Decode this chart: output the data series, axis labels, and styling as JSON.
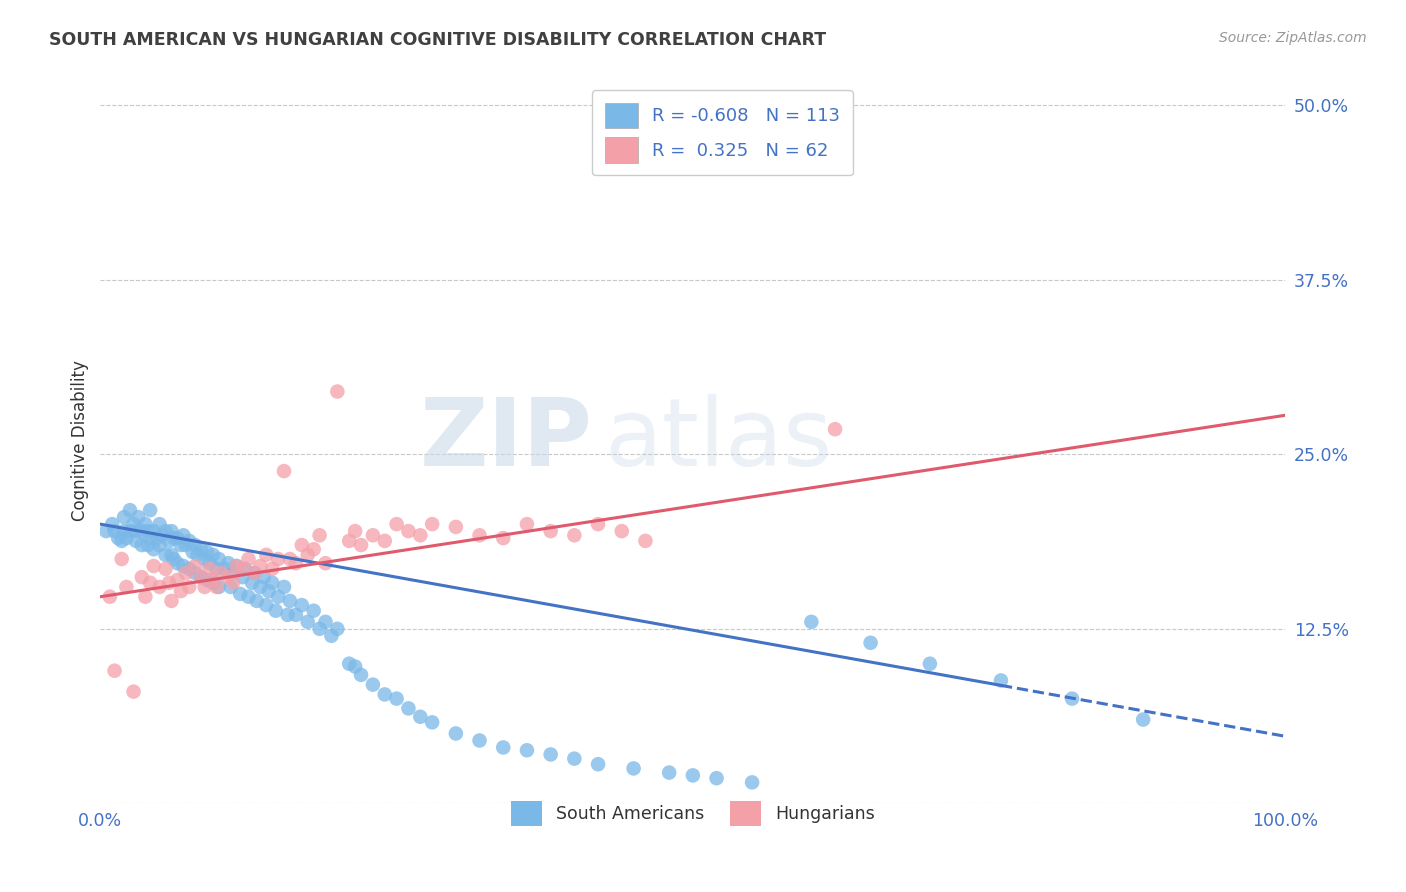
{
  "title": "SOUTH AMERICAN VS HUNGARIAN COGNITIVE DISABILITY CORRELATION CHART",
  "source": "Source: ZipAtlas.com",
  "ylabel": "Cognitive Disability",
  "yticks": [
    0.0,
    0.125,
    0.25,
    0.375,
    0.5
  ],
  "ytick_labels": [
    "",
    "12.5%",
    "25.0%",
    "37.5%",
    "50.0%"
  ],
  "xlim": [
    0.0,
    1.0
  ],
  "ylim": [
    0.0,
    0.52
  ],
  "legend_blue_r": "-0.608",
  "legend_blue_n": "113",
  "legend_pink_r": "0.325",
  "legend_pink_n": "62",
  "blue_color": "#7ab8e8",
  "pink_color": "#f4a0a8",
  "blue_line_color": "#4472c4",
  "pink_line_color": "#e05a6e",
  "watermark_zip": "ZIP",
  "watermark_atlas": "atlas",
  "blue_trend_y_start": 0.2,
  "blue_trend_y_end": 0.048,
  "blue_trend_solid_end_x": 0.76,
  "pink_trend_y_start": 0.148,
  "pink_trend_y_end": 0.278,
  "blue_scatter_x": [
    0.005,
    0.01,
    0.012,
    0.015,
    0.018,
    0.02,
    0.02,
    0.022,
    0.025,
    0.025,
    0.028,
    0.03,
    0.03,
    0.032,
    0.035,
    0.035,
    0.038,
    0.04,
    0.04,
    0.042,
    0.042,
    0.045,
    0.045,
    0.048,
    0.05,
    0.05,
    0.052,
    0.055,
    0.055,
    0.058,
    0.06,
    0.06,
    0.062,
    0.062,
    0.065,
    0.065,
    0.068,
    0.07,
    0.07,
    0.072,
    0.075,
    0.075,
    0.078,
    0.08,
    0.08,
    0.082,
    0.085,
    0.085,
    0.088,
    0.09,
    0.09,
    0.092,
    0.095,
    0.095,
    0.098,
    0.1,
    0.1,
    0.105,
    0.108,
    0.11,
    0.112,
    0.115,
    0.118,
    0.12,
    0.122,
    0.125,
    0.128,
    0.13,
    0.132,
    0.135,
    0.138,
    0.14,
    0.142,
    0.145,
    0.148,
    0.15,
    0.155,
    0.158,
    0.16,
    0.165,
    0.17,
    0.175,
    0.18,
    0.185,
    0.19,
    0.195,
    0.2,
    0.21,
    0.215,
    0.22,
    0.23,
    0.24,
    0.25,
    0.26,
    0.27,
    0.28,
    0.3,
    0.32,
    0.34,
    0.36,
    0.38,
    0.4,
    0.42,
    0.45,
    0.48,
    0.5,
    0.52,
    0.55,
    0.6,
    0.65,
    0.7,
    0.76,
    0.82,
    0.88
  ],
  "blue_scatter_y": [
    0.195,
    0.2,
    0.195,
    0.19,
    0.188,
    0.205,
    0.195,
    0.19,
    0.21,
    0.195,
    0.2,
    0.195,
    0.188,
    0.205,
    0.195,
    0.185,
    0.2,
    0.195,
    0.185,
    0.21,
    0.19,
    0.195,
    0.182,
    0.19,
    0.2,
    0.185,
    0.192,
    0.195,
    0.178,
    0.188,
    0.195,
    0.178,
    0.19,
    0.175,
    0.19,
    0.172,
    0.185,
    0.192,
    0.17,
    0.185,
    0.188,
    0.168,
    0.18,
    0.185,
    0.165,
    0.178,
    0.182,
    0.162,
    0.175,
    0.18,
    0.16,
    0.172,
    0.178,
    0.158,
    0.168,
    0.175,
    0.155,
    0.168,
    0.172,
    0.155,
    0.165,
    0.17,
    0.15,
    0.162,
    0.168,
    0.148,
    0.158,
    0.165,
    0.145,
    0.155,
    0.162,
    0.142,
    0.152,
    0.158,
    0.138,
    0.148,
    0.155,
    0.135,
    0.145,
    0.135,
    0.142,
    0.13,
    0.138,
    0.125,
    0.13,
    0.12,
    0.125,
    0.1,
    0.098,
    0.092,
    0.085,
    0.078,
    0.075,
    0.068,
    0.062,
    0.058,
    0.05,
    0.045,
    0.04,
    0.038,
    0.035,
    0.032,
    0.028,
    0.025,
    0.022,
    0.02,
    0.018,
    0.015,
    0.13,
    0.115,
    0.1,
    0.088,
    0.075,
    0.06
  ],
  "pink_scatter_x": [
    0.008,
    0.012,
    0.018,
    0.022,
    0.028,
    0.035,
    0.038,
    0.042,
    0.045,
    0.05,
    0.055,
    0.058,
    0.06,
    0.065,
    0.068,
    0.072,
    0.075,
    0.08,
    0.085,
    0.088,
    0.092,
    0.095,
    0.098,
    0.102,
    0.108,
    0.112,
    0.115,
    0.12,
    0.125,
    0.13,
    0.135,
    0.14,
    0.145,
    0.15,
    0.155,
    0.16,
    0.165,
    0.17,
    0.175,
    0.18,
    0.185,
    0.19,
    0.2,
    0.21,
    0.215,
    0.22,
    0.23,
    0.24,
    0.25,
    0.26,
    0.27,
    0.28,
    0.3,
    0.32,
    0.34,
    0.36,
    0.38,
    0.4,
    0.42,
    0.44,
    0.46,
    0.62
  ],
  "pink_scatter_y": [
    0.148,
    0.095,
    0.175,
    0.155,
    0.08,
    0.162,
    0.148,
    0.158,
    0.17,
    0.155,
    0.168,
    0.158,
    0.145,
    0.16,
    0.152,
    0.165,
    0.155,
    0.17,
    0.162,
    0.155,
    0.168,
    0.16,
    0.155,
    0.165,
    0.162,
    0.158,
    0.17,
    0.168,
    0.175,
    0.165,
    0.17,
    0.178,
    0.168,
    0.175,
    0.238,
    0.175,
    0.172,
    0.185,
    0.178,
    0.182,
    0.192,
    0.172,
    0.295,
    0.188,
    0.195,
    0.185,
    0.192,
    0.188,
    0.2,
    0.195,
    0.192,
    0.2,
    0.198,
    0.192,
    0.19,
    0.2,
    0.195,
    0.192,
    0.2,
    0.195,
    0.188,
    0.268
  ]
}
